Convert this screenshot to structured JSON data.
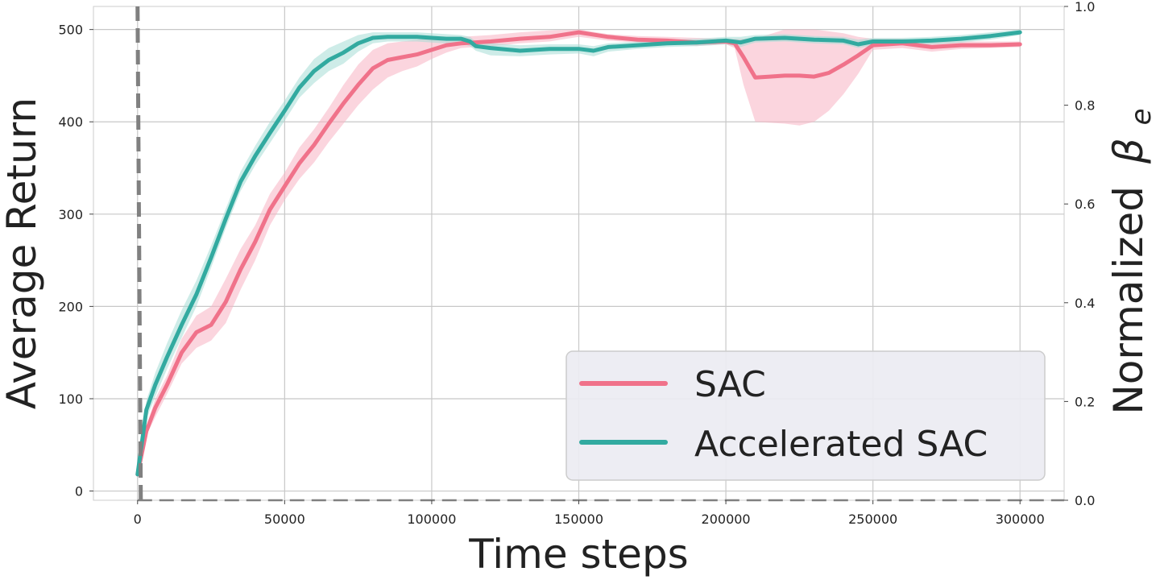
{
  "chart_data": {
    "type": "line",
    "xlabel": "Time steps",
    "ylabel": "Average Return",
    "y2label": "Normalized",
    "y2label_symbol": "β",
    "y2label_subscript": "e",
    "xlim": [
      -15000,
      315000
    ],
    "ylim": [
      -10,
      525
    ],
    "y2lim": [
      0.0,
      1.0
    ],
    "x_ticks": [
      0,
      50000,
      100000,
      150000,
      200000,
      250000,
      300000
    ],
    "x_tick_labels": [
      "0",
      "50000",
      "100000",
      "150000",
      "200000",
      "250000",
      "300000"
    ],
    "y_ticks": [
      0,
      100,
      200,
      300,
      400,
      500
    ],
    "y_tick_labels": [
      "0",
      "100",
      "200",
      "300",
      "400",
      "500"
    ],
    "y2_ticks": [
      0.0,
      0.2,
      0.4,
      0.6,
      0.8,
      1.0
    ],
    "y2_tick_labels": [
      "0.0",
      "0.2",
      "0.4",
      "0.6",
      "0.8",
      "1.0"
    ],
    "grid": true,
    "legend_position": "bottom-right",
    "series": [
      {
        "name": "SAC",
        "color": "#f0728a",
        "band_color": "#f7b3c2",
        "x": [
          0,
          3000,
          6000,
          10000,
          15000,
          20000,
          25000,
          30000,
          35000,
          40000,
          45000,
          50000,
          55000,
          60000,
          65000,
          70000,
          75000,
          80000,
          85000,
          90000,
          95000,
          100000,
          105000,
          110000,
          120000,
          130000,
          140000,
          150000,
          160000,
          170000,
          180000,
          190000,
          200000,
          203000,
          206000,
          210000,
          215000,
          220000,
          225000,
          230000,
          235000,
          240000,
          245000,
          250000,
          260000,
          270000,
          280000,
          290000,
          300000
        ],
        "y": [
          18,
          65,
          90,
          115,
          150,
          172,
          180,
          205,
          240,
          270,
          305,
          330,
          355,
          375,
          398,
          420,
          440,
          458,
          467,
          470,
          473,
          478,
          483,
          485,
          487,
          490,
          492,
          497,
          492,
          489,
          488,
          486,
          487,
          485,
          470,
          448,
          449,
          450,
          450,
          449,
          453,
          462,
          472,
          483,
          485,
          481,
          483,
          483,
          484
        ],
        "upper": [
          18,
          70,
          100,
          125,
          165,
          190,
          200,
          230,
          262,
          288,
          322,
          345,
          372,
          392,
          415,
          440,
          462,
          478,
          485,
          487,
          489,
          490,
          492,
          492,
          494,
          497,
          499,
          500,
          495,
          493,
          492,
          491,
          490,
          490,
          490,
          490,
          495,
          500,
          500,
          500,
          498,
          496,
          492,
          490,
          490,
          487,
          487,
          487,
          487
        ],
        "lower": [
          18,
          60,
          80,
          105,
          138,
          155,
          163,
          182,
          218,
          250,
          288,
          315,
          338,
          356,
          378,
          398,
          418,
          435,
          448,
          455,
          460,
          468,
          475,
          480,
          482,
          485,
          487,
          492,
          488,
          486,
          484,
          482,
          484,
          480,
          440,
          400,
          399,
          398,
          396,
          400,
          412,
          430,
          452,
          478,
          480,
          476,
          479,
          480,
          481
        ]
      },
      {
        "name": "Accelerated SAC",
        "color": "#32aaa0",
        "band_color": "#a6ddd6",
        "x": [
          0,
          3000,
          6000,
          10000,
          15000,
          20000,
          25000,
          30000,
          35000,
          40000,
          45000,
          50000,
          55000,
          60000,
          65000,
          70000,
          75000,
          80000,
          85000,
          90000,
          95000,
          100000,
          105000,
          110000,
          113000,
          115000,
          120000,
          130000,
          140000,
          150000,
          155000,
          160000,
          170000,
          180000,
          190000,
          200000,
          205000,
          210000,
          220000,
          230000,
          240000,
          245000,
          250000,
          260000,
          270000,
          280000,
          290000,
          300000
        ],
        "y": [
          18,
          88,
          115,
          145,
          180,
          213,
          253,
          295,
          335,
          363,
          388,
          412,
          437,
          455,
          467,
          475,
          485,
          491,
          492,
          492,
          492,
          491,
          490,
          490,
          487,
          482,
          480,
          477,
          479,
          479,
          477,
          481,
          483,
          485,
          486,
          488,
          486,
          490,
          491,
          489,
          488,
          484,
          487,
          487,
          488,
          490,
          493,
          497
        ],
        "upper": [
          18,
          98,
          128,
          160,
          196,
          228,
          266,
          306,
          346,
          374,
          400,
          423,
          448,
          468,
          480,
          487,
          494,
          497,
          497,
          497,
          497,
          496,
          495,
          494,
          492,
          487,
          485,
          483,
          484,
          484,
          482,
          485,
          487,
          489,
          490,
          492,
          492,
          494,
          495,
          493,
          492,
          489,
          491,
          491,
          492,
          494,
          497,
          500
        ],
        "lower": [
          18,
          78,
          102,
          132,
          166,
          200,
          242,
          285,
          325,
          353,
          377,
          401,
          426,
          442,
          455,
          463,
          476,
          485,
          487,
          487,
          487,
          486,
          485,
          485,
          482,
          477,
          472,
          471,
          473,
          474,
          471,
          476,
          479,
          481,
          482,
          484,
          481,
          486,
          487,
          485,
          484,
          480,
          483,
          483,
          484,
          486,
          489,
          494
        ]
      }
    ],
    "reference_lines": [
      {
        "style": "dashed",
        "color": "#808080",
        "orientation": "vertical",
        "x": 0
      },
      {
        "style": "dashed",
        "color": "#808080",
        "orientation": "horizontal",
        "y2": 0.0
      }
    ]
  }
}
